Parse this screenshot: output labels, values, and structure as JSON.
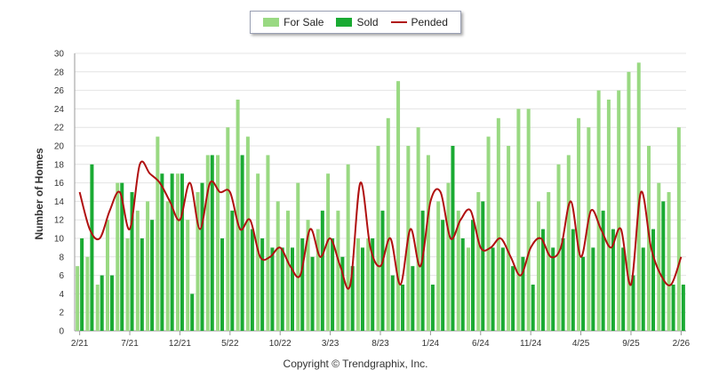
{
  "chart_data": {
    "type": "bar",
    "title": "",
    "ylabel": "Number of Homes",
    "xlabel": "",
    "ylim": [
      0,
      30
    ],
    "yticks": [
      0,
      2,
      4,
      6,
      8,
      10,
      12,
      14,
      16,
      18,
      20,
      22,
      24,
      26,
      28,
      30
    ],
    "grid": true,
    "legend_position": "top-center",
    "categories": [
      "2/21",
      "3/21",
      "4/21",
      "5/21",
      "6/21",
      "7/21",
      "8/21",
      "9/21",
      "10/21",
      "11/21",
      "12/21",
      "1/22",
      "2/22",
      "3/22",
      "4/22",
      "5/22",
      "6/22",
      "7/22",
      "8/22",
      "9/22",
      "10/22",
      "11/22",
      "12/22",
      "1/23",
      "2/23",
      "3/23",
      "4/23",
      "5/23",
      "6/23",
      "7/23",
      "8/23",
      "9/23",
      "10/23",
      "11/23",
      "12/23",
      "1/24",
      "2/24",
      "3/24",
      "4/24",
      "5/24",
      "6/24",
      "7/24",
      "8/24",
      "9/24",
      "10/24",
      "11/24",
      "12/24",
      "1/25",
      "2/25",
      "3/25",
      "4/25",
      "5/25",
      "6/25",
      "7/25",
      "8/25",
      "9/25",
      "10/25",
      "11/25",
      "12/25",
      "1/26",
      "2/26"
    ],
    "x_tick_labels": [
      {
        "index": 0,
        "label": "2/21"
      },
      {
        "index": 5,
        "label": "7/21"
      },
      {
        "index": 10,
        "label": "12/21"
      },
      {
        "index": 15,
        "label": "5/22"
      },
      {
        "index": 20,
        "label": "10/22"
      },
      {
        "index": 25,
        "label": "3/23"
      },
      {
        "index": 30,
        "label": "8/23"
      },
      {
        "index": 35,
        "label": "1/24"
      },
      {
        "index": 40,
        "label": "6/24"
      },
      {
        "index": 45,
        "label": "11/24"
      },
      {
        "index": 50,
        "label": "4/25"
      },
      {
        "index": 55,
        "label": "9/25"
      },
      {
        "index": 60,
        "label": "2/26"
      }
    ],
    "series": [
      {
        "name": "For Sale",
        "type": "bar",
        "color": "#99d982",
        "values": [
          7,
          8,
          5,
          12,
          16,
          10,
          13,
          14,
          21,
          14,
          17,
          12,
          15,
          19,
          19,
          22,
          25,
          21,
          17,
          19,
          14,
          13,
          16,
          12,
          11,
          17,
          13,
          18,
          10,
          10,
          20,
          23,
          27,
          20,
          22,
          19,
          14,
          16,
          13,
          9,
          15,
          21,
          23,
          20,
          24,
          24,
          14,
          15,
          18,
          19,
          23,
          22,
          26,
          25,
          26,
          28,
          29,
          20,
          16,
          15,
          22
        ]
      },
      {
        "name": "Sold",
        "type": "bar",
        "color": "#1aaa33",
        "values": [
          10,
          18,
          6,
          6,
          16,
          15,
          10,
          12,
          17,
          17,
          17,
          4,
          16,
          19,
          10,
          13,
          19,
          11,
          10,
          9,
          9,
          9,
          10,
          8,
          13,
          10,
          8,
          7,
          9,
          10,
          13,
          6,
          5,
          7,
          13,
          5,
          12,
          20,
          10,
          12,
          14,
          9,
          9,
          7,
          8,
          5,
          11,
          9,
          10,
          11,
          8,
          9,
          13,
          11,
          9,
          6,
          9,
          11,
          14,
          5,
          5
        ]
      },
      {
        "name": "Pended",
        "type": "line",
        "color": "#b01010",
        "values": [
          15,
          11,
          10,
          13,
          15,
          11,
          18,
          17,
          16,
          14,
          12,
          16,
          11,
          16,
          15,
          15,
          11,
          12,
          8,
          8,
          9,
          7,
          6,
          11,
          8,
          10,
          7,
          5,
          16,
          9,
          7,
          10,
          5,
          11,
          7,
          14,
          15,
          10,
          12,
          13,
          9,
          9,
          10,
          8,
          6,
          9,
          10,
          8,
          9,
          14,
          8,
          13,
          11,
          9,
          11,
          5,
          15,
          9,
          6,
          5,
          8
        ]
      }
    ]
  },
  "legend": {
    "for_sale": "For Sale",
    "sold": "Sold",
    "pended": "Pended"
  },
  "footer": {
    "copyright": "Copyright © Trendgraphix, Inc."
  },
  "colors": {
    "for_sale": "#99d982",
    "sold": "#1aaa33",
    "pended": "#b01010",
    "grid": "#e4e4e4",
    "axis": "#999999"
  }
}
